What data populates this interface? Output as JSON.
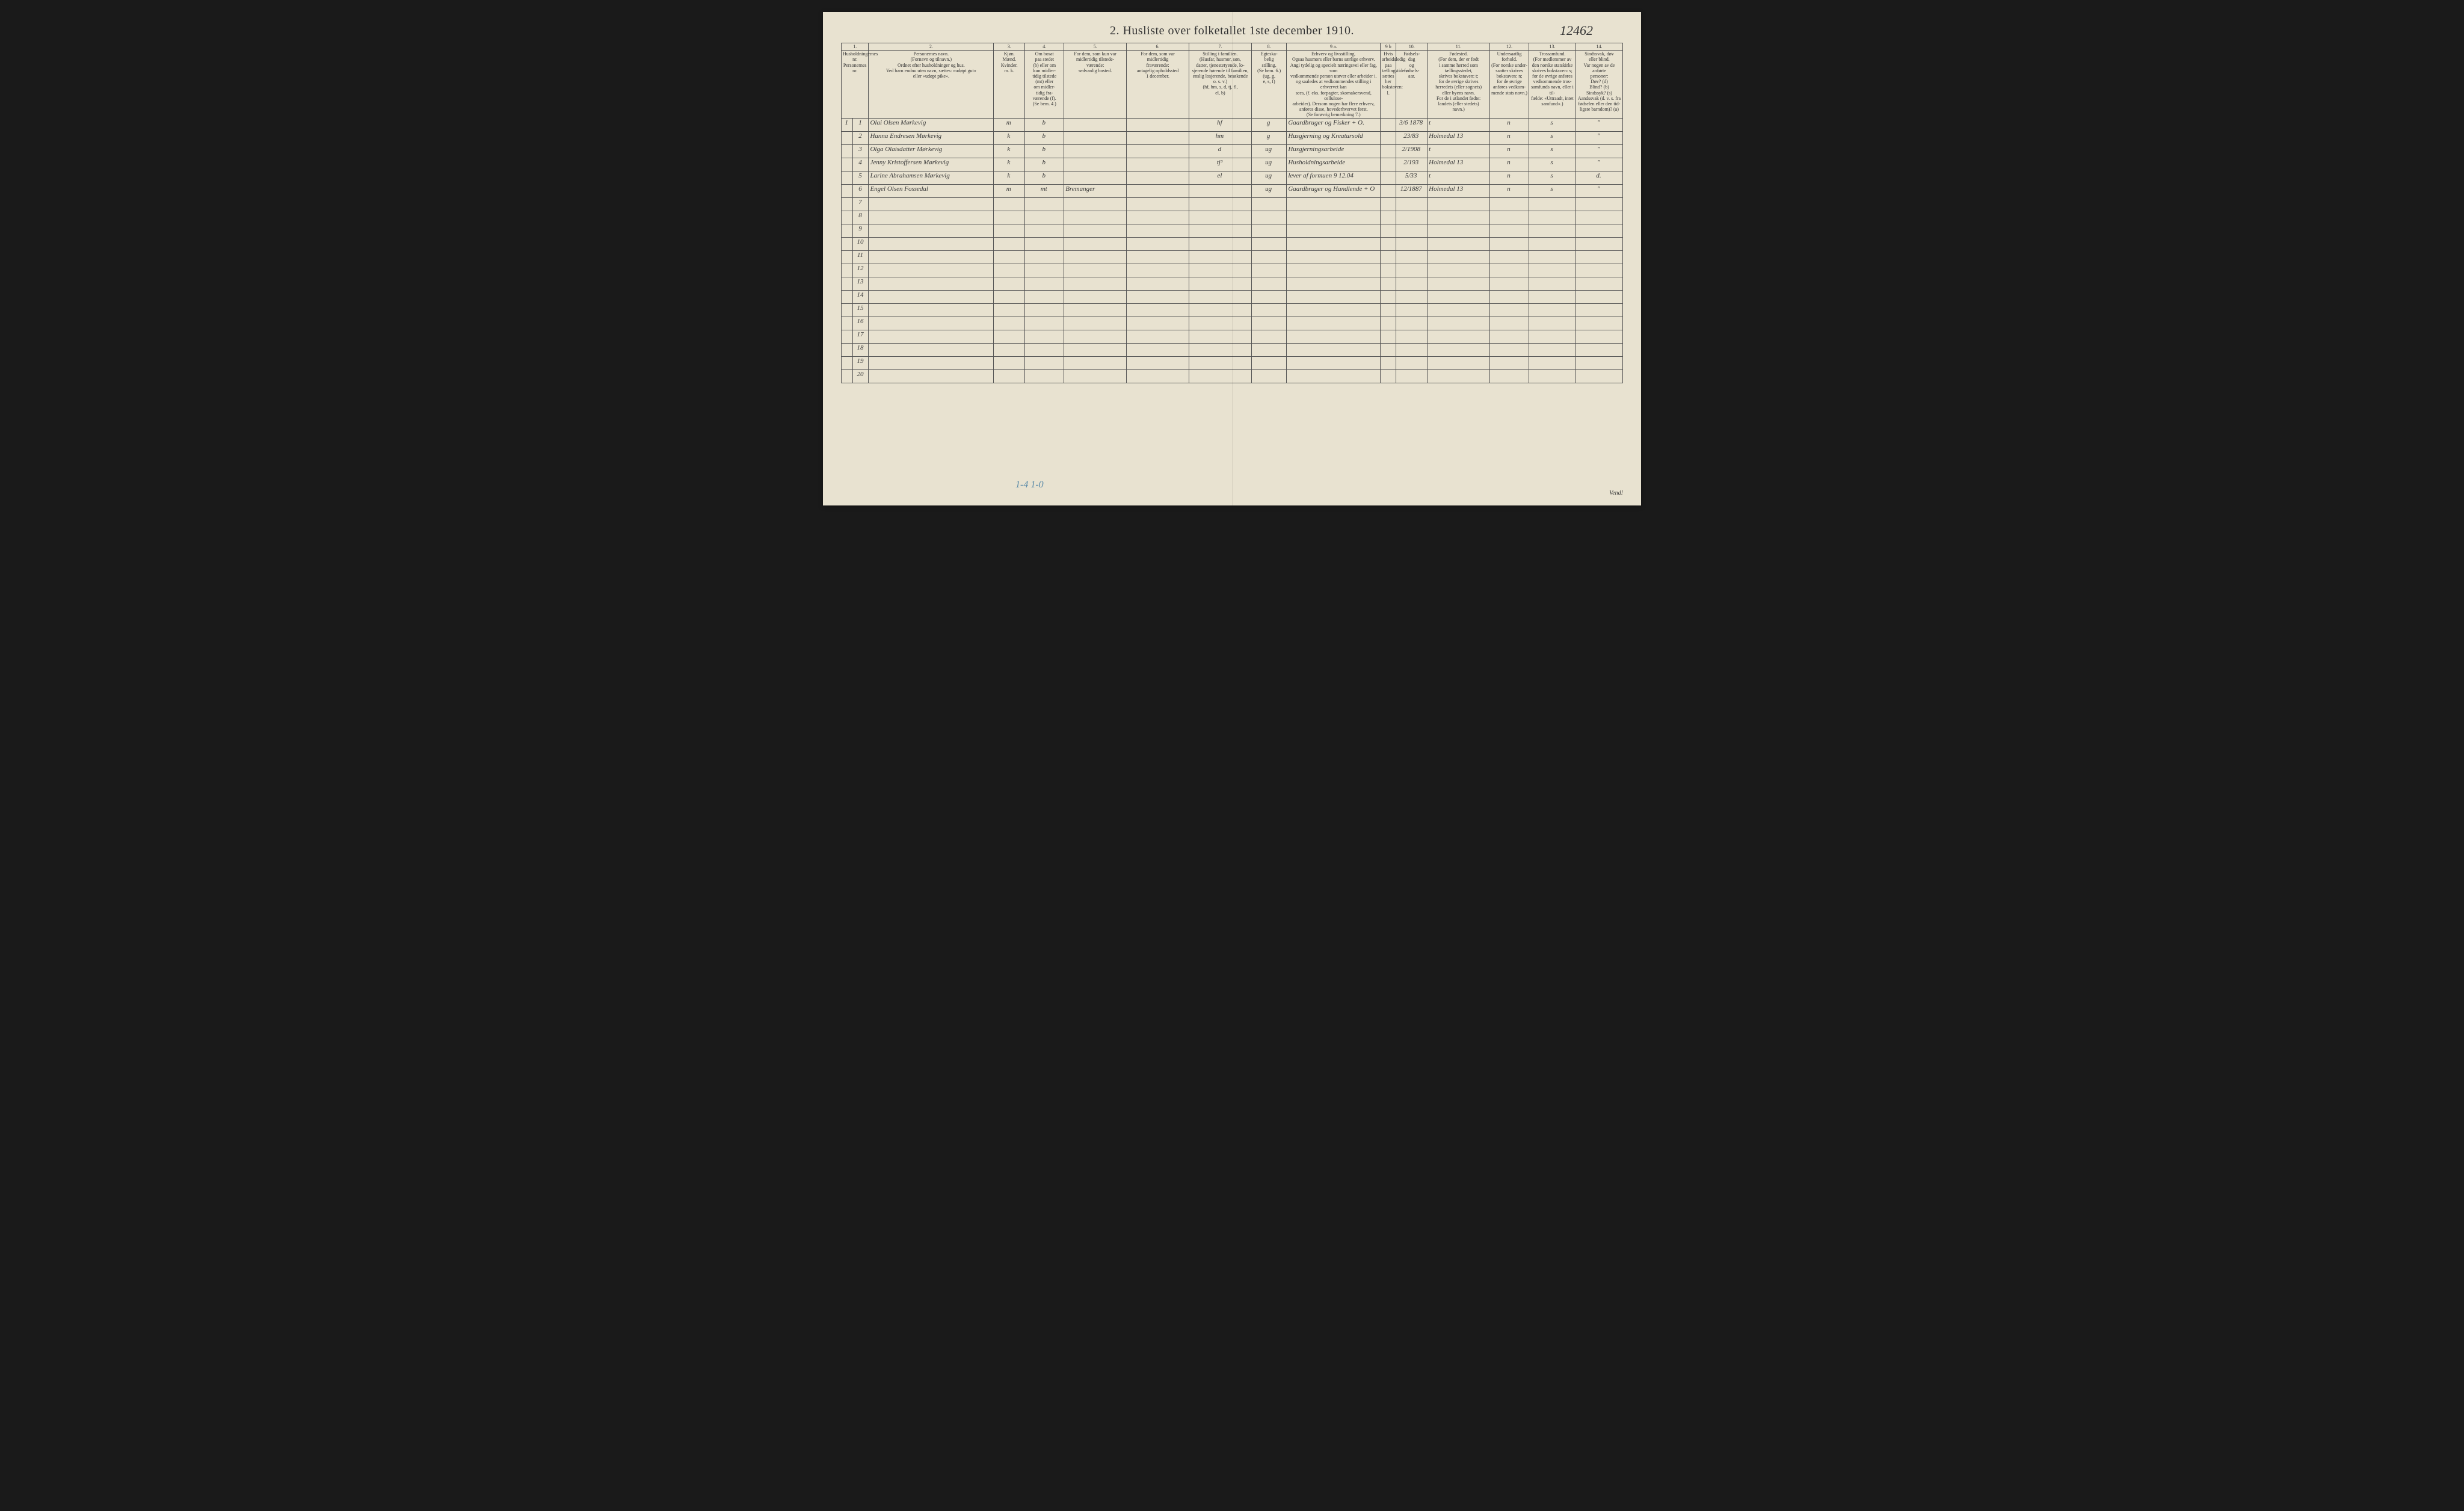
{
  "document": {
    "handwritten_number": "12462",
    "title": "2.  Husliste over folketallet 1ste december 1910.",
    "footer_annotation": "1-4   1-0",
    "vendi": "Vend!",
    "background_color": "#e8e2d0",
    "border_color": "#555555",
    "text_color": "#333333",
    "handwriting_color": "#3a3a3a",
    "annotation_color": "#5a8aa8"
  },
  "columns": {
    "numbers": [
      "1.",
      "2.",
      "3.",
      "4.",
      "5.",
      "6.",
      "7.",
      "8.",
      "9 a.",
      "9 b",
      "10.",
      "11.",
      "12.",
      "13.",
      "14."
    ],
    "widths_pct": [
      3.5,
      16,
      4,
      5,
      8,
      8,
      8,
      4.5,
      12,
      2,
      4,
      8,
      5,
      6,
      6
    ],
    "headers": [
      "Husholdningernes nr.\nPersonernes nr.",
      "Personernes navn.\n(Fornavn og tilnavn.)\nOrdnet efter husholdninger og hus.\nVed barn endnu uten navn, sættes: «udøpt gut»\neller «udøpt pike».",
      "Kjøn.\nMænd.\nKvinder.\nm. k.",
      "Om bosat\npaa stedet\n(b) eller om\nkun midler-\ntidig tilstede\n(mt) eller\nom midler-\ntidig fra-\nværende (f).\n(Se bem. 4.)",
      "For dem, som kun var\nmidlertidig tilstede-\nværende:\nsedvanlig bosted.",
      "For dem, som var\nmidlertidig\nfraværende:\nantagelig opholdssted\n1 december.",
      "Stilling i familien.\n(Husfar, husmor, søn,\ndatter, tjenestetyende, lo-\nsjerende hørende til familien,\nenslig losjerende, besøkende\no. s. v.)\n(hf, hm, s, d, tj, fl,\nel, b)",
      "Egteska-\nbelig\nstilling.\n(Se bem. 6.)\n(ug, g,\ne, s, f)",
      "Erhverv og livsstilling.\nOgsaa husmors eller barns særlige erhverv.\nAngi tydelig og specielt næringsvei eller fag, som\nvedkommende person utøver eller arbeider i.\nog saaledes at vedkommendes stilling i erhvervet kan\nsees, (f. eks. forpagter, skomakersvend, cellulose-\narbeider). Dersom nogen har flere erhverv,\nanføres disse, hovederhvervet først.\n(Se forøvrig bemerkning 7.)",
      "Hvis arbeidsledig\npaa tællingstiden sættes\nher bokstaven: l.",
      "Fødsels-\ndag\nog\nfødsels-\naar.",
      "Fødested.\n(For dem, der er født\ni samme herred som\ntællingsstedet,\nskrives bokstaven: t;\nfor de øvrige skrives\nherredets (eller sognets)\neller byens navn.\nFor de i utlandet fødte:\nlandets (eller stedets)\nnavn.)",
      "Undersaatlig\nforhold.\n(For norske under-\nsaatter skrives\nbokstaven: n;\nfor de øvrige\nanføres vedkom-\nmende stats navn.)",
      "Trossamfund.\n(For medlemmer av\nden norske statskirke\nskrives bokstaven: s;\nfor de øvrige anføres\nvedkommende tros-\nsamfunds navn, eller i til-\nfælde: «Uttraadt, intet\nsamfund».)",
      "Sindssvak, døv\neller blind.\nVar nogen av de anførte\npersoner:\nDøv?       (d)\nBlind?      (b)\nSindssyk? (s)\nAandssvak (d. v. s. fra\nfødselen eller den tid-\nligste barndom)? (a)"
    ]
  },
  "rows": [
    {
      "hh": "1",
      "pn": "1",
      "name": "Olai Olsen Mørkevig",
      "sex": "m",
      "res": "b",
      "c5": "",
      "c6": "",
      "famstill": "hf",
      "civ": "g",
      "erhverv": "Gaardbruger og Fisker  + O.",
      "c9b": "",
      "birth": "3/6 1878",
      "birthplace": "t",
      "nat": "n",
      "rel": "s",
      "c14": "\""
    },
    {
      "hh": "",
      "pn": "2",
      "name": "Hanna Endresen Mørkevig",
      "sex": "k",
      "res": "b",
      "c5": "",
      "c6": "",
      "famstill": "hm",
      "civ": "g",
      "erhverv": "Husgjerning og Kreatursold",
      "c9b": "",
      "birth": "23/83",
      "birthplace": "Holmedal 13",
      "nat": "n",
      "rel": "s",
      "c14": "\""
    },
    {
      "hh": "",
      "pn": "3",
      "name": "Olga Olaisdatter Mørkevig",
      "sex": "k",
      "res": "b",
      "c5": "",
      "c6": "",
      "famstill": "d",
      "civ": "ug",
      "erhverv": "Husgjerningsarbeide",
      "c9b": "",
      "birth": "2/1908",
      "birthplace": "t",
      "nat": "n",
      "rel": "s",
      "c14": "\""
    },
    {
      "hh": "",
      "pn": "4",
      "name": "Jenny Kristoffersen Mørkevig",
      "sex": "k",
      "res": "b",
      "c5": "",
      "c6": "",
      "famstill": "tj³",
      "civ": "ug",
      "erhverv": "Husholdningsarbeide",
      "c9b": "",
      "birth": "2/193",
      "birthplace": "Holmedal 13",
      "nat": "n",
      "rel": "s",
      "c14": "\""
    },
    {
      "hh": "",
      "pn": "5",
      "name": "Larine Abrahamsen Mørkevig",
      "sex": "k",
      "res": "b",
      "c5": "",
      "c6": "",
      "famstill": "el",
      "civ": "ug",
      "erhverv": "lever af formuen 9 12.04",
      "c9b": "",
      "birth": "5/33",
      "birthplace": "t",
      "nat": "n",
      "rel": "s",
      "c14": "d."
    },
    {
      "hh": "",
      "pn": "6",
      "name": "Engel Olsen        Fossedal",
      "sex": "m",
      "res": "mt",
      "c5": "Bremanger",
      "c6": "",
      "famstill": "",
      "civ": "ug",
      "erhverv": "Gaardbruger og Handlende  + O",
      "c9b": "",
      "birth": "12/1887",
      "birthplace": "Holmedal 13",
      "nat": "n",
      "rel": "s",
      "c14": "\""
    },
    {
      "hh": "",
      "pn": "7",
      "name": "",
      "sex": "",
      "res": "",
      "c5": "",
      "c6": "",
      "famstill": "",
      "civ": "",
      "erhverv": "",
      "c9b": "",
      "birth": "",
      "birthplace": "",
      "nat": "",
      "rel": "",
      "c14": ""
    },
    {
      "hh": "",
      "pn": "8",
      "name": "",
      "sex": "",
      "res": "",
      "c5": "",
      "c6": "",
      "famstill": "",
      "civ": "",
      "erhverv": "",
      "c9b": "",
      "birth": "",
      "birthplace": "",
      "nat": "",
      "rel": "",
      "c14": ""
    },
    {
      "hh": "",
      "pn": "9",
      "name": "",
      "sex": "",
      "res": "",
      "c5": "",
      "c6": "",
      "famstill": "",
      "civ": "",
      "erhverv": "",
      "c9b": "",
      "birth": "",
      "birthplace": "",
      "nat": "",
      "rel": "",
      "c14": ""
    },
    {
      "hh": "",
      "pn": "10",
      "name": "",
      "sex": "",
      "res": "",
      "c5": "",
      "c6": "",
      "famstill": "",
      "civ": "",
      "erhverv": "",
      "c9b": "",
      "birth": "",
      "birthplace": "",
      "nat": "",
      "rel": "",
      "c14": ""
    },
    {
      "hh": "",
      "pn": "11",
      "name": "",
      "sex": "",
      "res": "",
      "c5": "",
      "c6": "",
      "famstill": "",
      "civ": "",
      "erhverv": "",
      "c9b": "",
      "birth": "",
      "birthplace": "",
      "nat": "",
      "rel": "",
      "c14": ""
    },
    {
      "hh": "",
      "pn": "12",
      "name": "",
      "sex": "",
      "res": "",
      "c5": "",
      "c6": "",
      "famstill": "",
      "civ": "",
      "erhverv": "",
      "c9b": "",
      "birth": "",
      "birthplace": "",
      "nat": "",
      "rel": "",
      "c14": ""
    },
    {
      "hh": "",
      "pn": "13",
      "name": "",
      "sex": "",
      "res": "",
      "c5": "",
      "c6": "",
      "famstill": "",
      "civ": "",
      "erhverv": "",
      "c9b": "",
      "birth": "",
      "birthplace": "",
      "nat": "",
      "rel": "",
      "c14": ""
    },
    {
      "hh": "",
      "pn": "14",
      "name": "",
      "sex": "",
      "res": "",
      "c5": "",
      "c6": "",
      "famstill": "",
      "civ": "",
      "erhverv": "",
      "c9b": "",
      "birth": "",
      "birthplace": "",
      "nat": "",
      "rel": "",
      "c14": ""
    },
    {
      "hh": "",
      "pn": "15",
      "name": "",
      "sex": "",
      "res": "",
      "c5": "",
      "c6": "",
      "famstill": "",
      "civ": "",
      "erhverv": "",
      "c9b": "",
      "birth": "",
      "birthplace": "",
      "nat": "",
      "rel": "",
      "c14": ""
    },
    {
      "hh": "",
      "pn": "16",
      "name": "",
      "sex": "",
      "res": "",
      "c5": "",
      "c6": "",
      "famstill": "",
      "civ": "",
      "erhverv": "",
      "c9b": "",
      "birth": "",
      "birthplace": "",
      "nat": "",
      "rel": "",
      "c14": ""
    },
    {
      "hh": "",
      "pn": "17",
      "name": "",
      "sex": "",
      "res": "",
      "c5": "",
      "c6": "",
      "famstill": "",
      "civ": "",
      "erhverv": "",
      "c9b": "",
      "birth": "",
      "birthplace": "",
      "nat": "",
      "rel": "",
      "c14": ""
    },
    {
      "hh": "",
      "pn": "18",
      "name": "",
      "sex": "",
      "res": "",
      "c5": "",
      "c6": "",
      "famstill": "",
      "civ": "",
      "erhverv": "",
      "c9b": "",
      "birth": "",
      "birthplace": "",
      "nat": "",
      "rel": "",
      "c14": ""
    },
    {
      "hh": "",
      "pn": "19",
      "name": "",
      "sex": "",
      "res": "",
      "c5": "",
      "c6": "",
      "famstill": "",
      "civ": "",
      "erhverv": "",
      "c9b": "",
      "birth": "",
      "birthplace": "",
      "nat": "",
      "rel": "",
      "c14": ""
    },
    {
      "hh": "",
      "pn": "20",
      "name": "",
      "sex": "",
      "res": "",
      "c5": "",
      "c6": "",
      "famstill": "",
      "civ": "",
      "erhverv": "",
      "c9b": "",
      "birth": "",
      "birthplace": "",
      "nat": "",
      "rel": "",
      "c14": ""
    }
  ]
}
